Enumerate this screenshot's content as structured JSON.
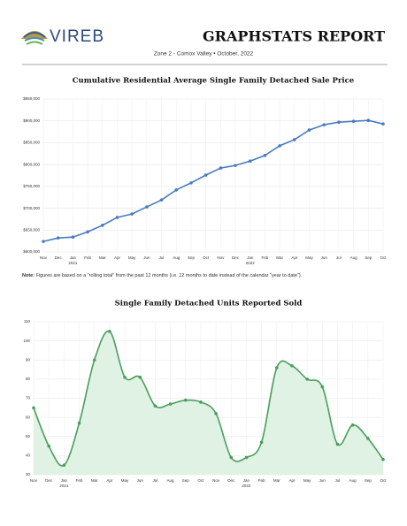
{
  "header": {
    "logo": "VIREB",
    "title": "GRAPHSTATS REPORT",
    "subtitle": "Zone 2 - Comox Valley • October, 2022"
  },
  "note": {
    "label": "Note:",
    "text": "Figures are based on a \"rolling total\" from the past 12 months (i.e. 12 months to date instead of the calendar \"year to date\")."
  },
  "chart_data": [
    {
      "type": "line",
      "title": "Cumulative Residential Average Single Family Detached Sale Price",
      "categories": [
        "Nov",
        "Dec",
        "Jan",
        "Feb",
        "Mar",
        "Apr",
        "May",
        "Jun",
        "Jul",
        "Aug",
        "Sep",
        "Oct",
        "Nov",
        "Dec",
        "Jan",
        "Feb",
        "Mar",
        "Apr",
        "May",
        "Jun",
        "Jul",
        "Aug",
        "Sep",
        "Oct"
      ],
      "x_sublabels": [
        null,
        null,
        "2021",
        null,
        null,
        null,
        null,
        null,
        null,
        null,
        null,
        null,
        null,
        null,
        "2022",
        null,
        null,
        null,
        null,
        null,
        null,
        null,
        null,
        null
      ],
      "values": [
        624000,
        632000,
        634000,
        646000,
        661000,
        679000,
        687000,
        703000,
        719000,
        742000,
        758000,
        776000,
        792000,
        798000,
        808000,
        821000,
        843000,
        857000,
        879000,
        891000,
        897000,
        899000,
        901000,
        893000
      ],
      "color": "#4a7cc0",
      "grid": true,
      "ylim": [
        600000,
        950000
      ],
      "yticks": [
        {
          "value": 600000,
          "label": "$600,000"
        },
        {
          "value": 650000,
          "label": "$650,000"
        },
        {
          "value": 700000,
          "label": "$700,000"
        },
        {
          "value": 750000,
          "label": "$750,000"
        },
        {
          "value": 800000,
          "label": "$800,000"
        },
        {
          "value": 850000,
          "label": "$850,000"
        },
        {
          "value": 900000,
          "label": "$900,000"
        },
        {
          "value": 950000,
          "label": "$950,000"
        }
      ]
    },
    {
      "type": "area",
      "title": "Single Family Detached Units Reported Sold",
      "smooth": true,
      "categories": [
        "Nov",
        "Dec",
        "Jan",
        "Feb",
        "Mar",
        "Apr",
        "May",
        "Jun",
        "Jul",
        "Aug",
        "Sep",
        "Oct",
        "Nov",
        "Dec",
        "Jan",
        "Feb",
        "Mar",
        "Apr",
        "May",
        "Jun",
        "Jul",
        "Aug",
        "Sep",
        "Oct"
      ],
      "x_sublabels": [
        null,
        null,
        "2021",
        null,
        null,
        null,
        null,
        null,
        null,
        null,
        null,
        null,
        null,
        null,
        "2022",
        null,
        null,
        null,
        null,
        null,
        null,
        null,
        null,
        null
      ],
      "values": [
        65,
        45,
        35,
        57,
        90,
        105,
        81,
        81,
        66,
        67,
        69,
        68,
        62,
        39,
        39,
        47,
        86,
        87,
        80,
        76,
        46,
        56,
        49,
        38
      ],
      "color": "#4a9e5c",
      "fill": "#dff2e3",
      "grid": true,
      "ylim": [
        30,
        110
      ],
      "yticks": [
        30,
        40,
        50,
        60,
        70,
        80,
        90,
        100,
        110
      ]
    }
  ]
}
